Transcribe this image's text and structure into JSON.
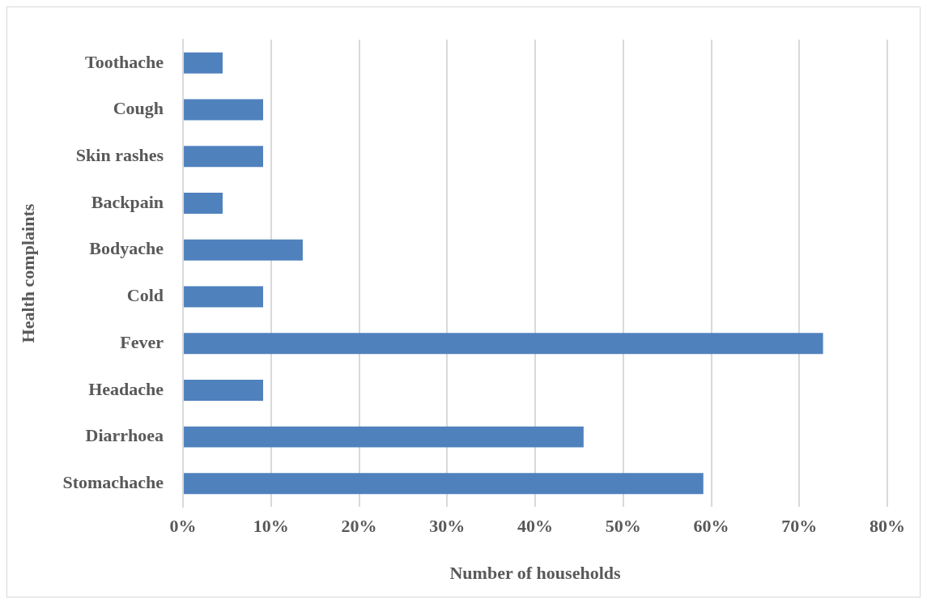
{
  "chart_data": {
    "type": "bar",
    "orientation": "horizontal",
    "xlabel": "Number of households",
    "ylabel": "Health complaints",
    "categories": [
      "Toothache",
      "Cough",
      "Skin rashes",
      "Backpain",
      "Bodyache",
      "Cold",
      "Fever",
      "Headache",
      "Diarrhoea",
      "Stomachache"
    ],
    "values": [
      4.5,
      9.1,
      9.1,
      4.5,
      13.6,
      9.1,
      72.7,
      9.1,
      45.5,
      59.1
    ],
    "color": "#4f81bd",
    "xlim": [
      0,
      80
    ],
    "xticks": [
      {
        "value": 0,
        "label": "0%"
      },
      {
        "value": 10,
        "label": "10%"
      },
      {
        "value": 20,
        "label": "20%"
      },
      {
        "value": 30,
        "label": "30%"
      },
      {
        "value": 40,
        "label": "40%"
      },
      {
        "value": 50,
        "label": "50%"
      },
      {
        "value": 60,
        "label": "60%"
      },
      {
        "value": 70,
        "label": "70%"
      },
      {
        "value": 80,
        "label": "80%"
      }
    ],
    "grid": "x"
  }
}
